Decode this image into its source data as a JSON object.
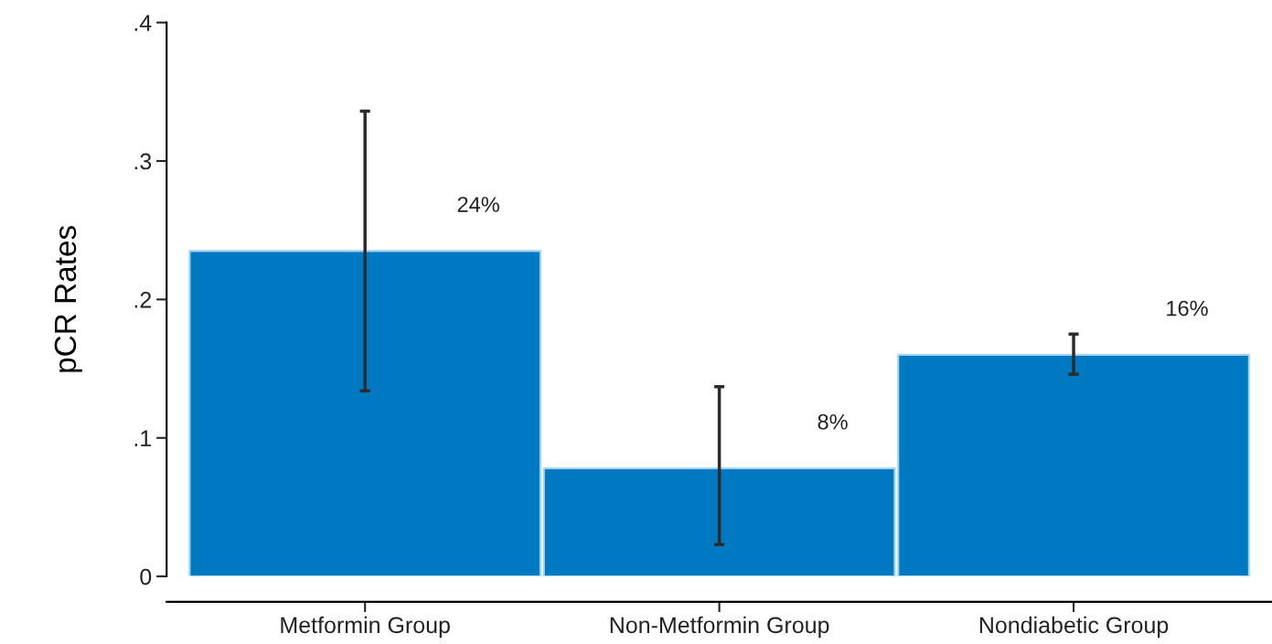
{
  "chart_data": {
    "type": "bar",
    "ylabel": "pCR Rates",
    "categories": [
      "Metformin Group",
      "Non-Metformin Group",
      "Nondiabetic Group"
    ],
    "values": [
      0.235,
      0.078,
      0.16
    ],
    "errors": [
      [
        0.134,
        0.336
      ],
      [
        0.023,
        0.137
      ],
      [
        0.146,
        0.175
      ]
    ],
    "value_labels": [
      "24%",
      "8%",
      "16%"
    ],
    "color": "#0079c2",
    "ylim": [
      0,
      0.4
    ],
    "yticks": [
      {
        "value": 0,
        "label": "0"
      },
      {
        "value": 0.1,
        "label": ".1"
      },
      {
        "value": 0.2,
        "label": ".2"
      },
      {
        "value": 0.3,
        "label": ".3"
      },
      {
        "value": 0.4,
        "label": ".4"
      }
    ],
    "grid": false,
    "legend": false
  }
}
